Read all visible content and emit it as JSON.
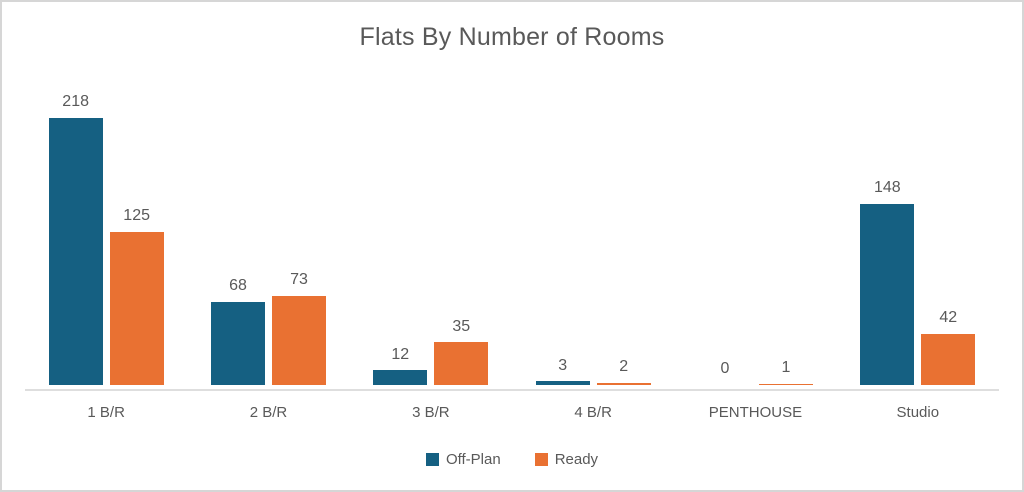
{
  "chart": {
    "title": "Flats By Number of Rooms"
  },
  "chart_data": {
    "type": "bar",
    "title": "Flats By Number of Rooms",
    "categories": [
      "1 B/R",
      "2 B/R",
      "3 B/R",
      "4 B/R",
      "PENTHOUSE",
      "Studio"
    ],
    "series": [
      {
        "name": "Off-Plan",
        "color": "#156082",
        "values": [
          218,
          68,
          12,
          3,
          0,
          148
        ]
      },
      {
        "name": "Ready",
        "color": "#E97132",
        "values": [
          125,
          73,
          35,
          2,
          1,
          42
        ]
      }
    ],
    "ylim": [
      0,
      218
    ],
    "xlabel": "",
    "ylabel": "",
    "grid": false,
    "data_labels": true,
    "legend_position": "bottom"
  },
  "colors": {
    "text": "#595959",
    "axis_line": "#DEDEDE",
    "frame_border": "#D6D6D6",
    "background": "#FFFFFF"
  }
}
